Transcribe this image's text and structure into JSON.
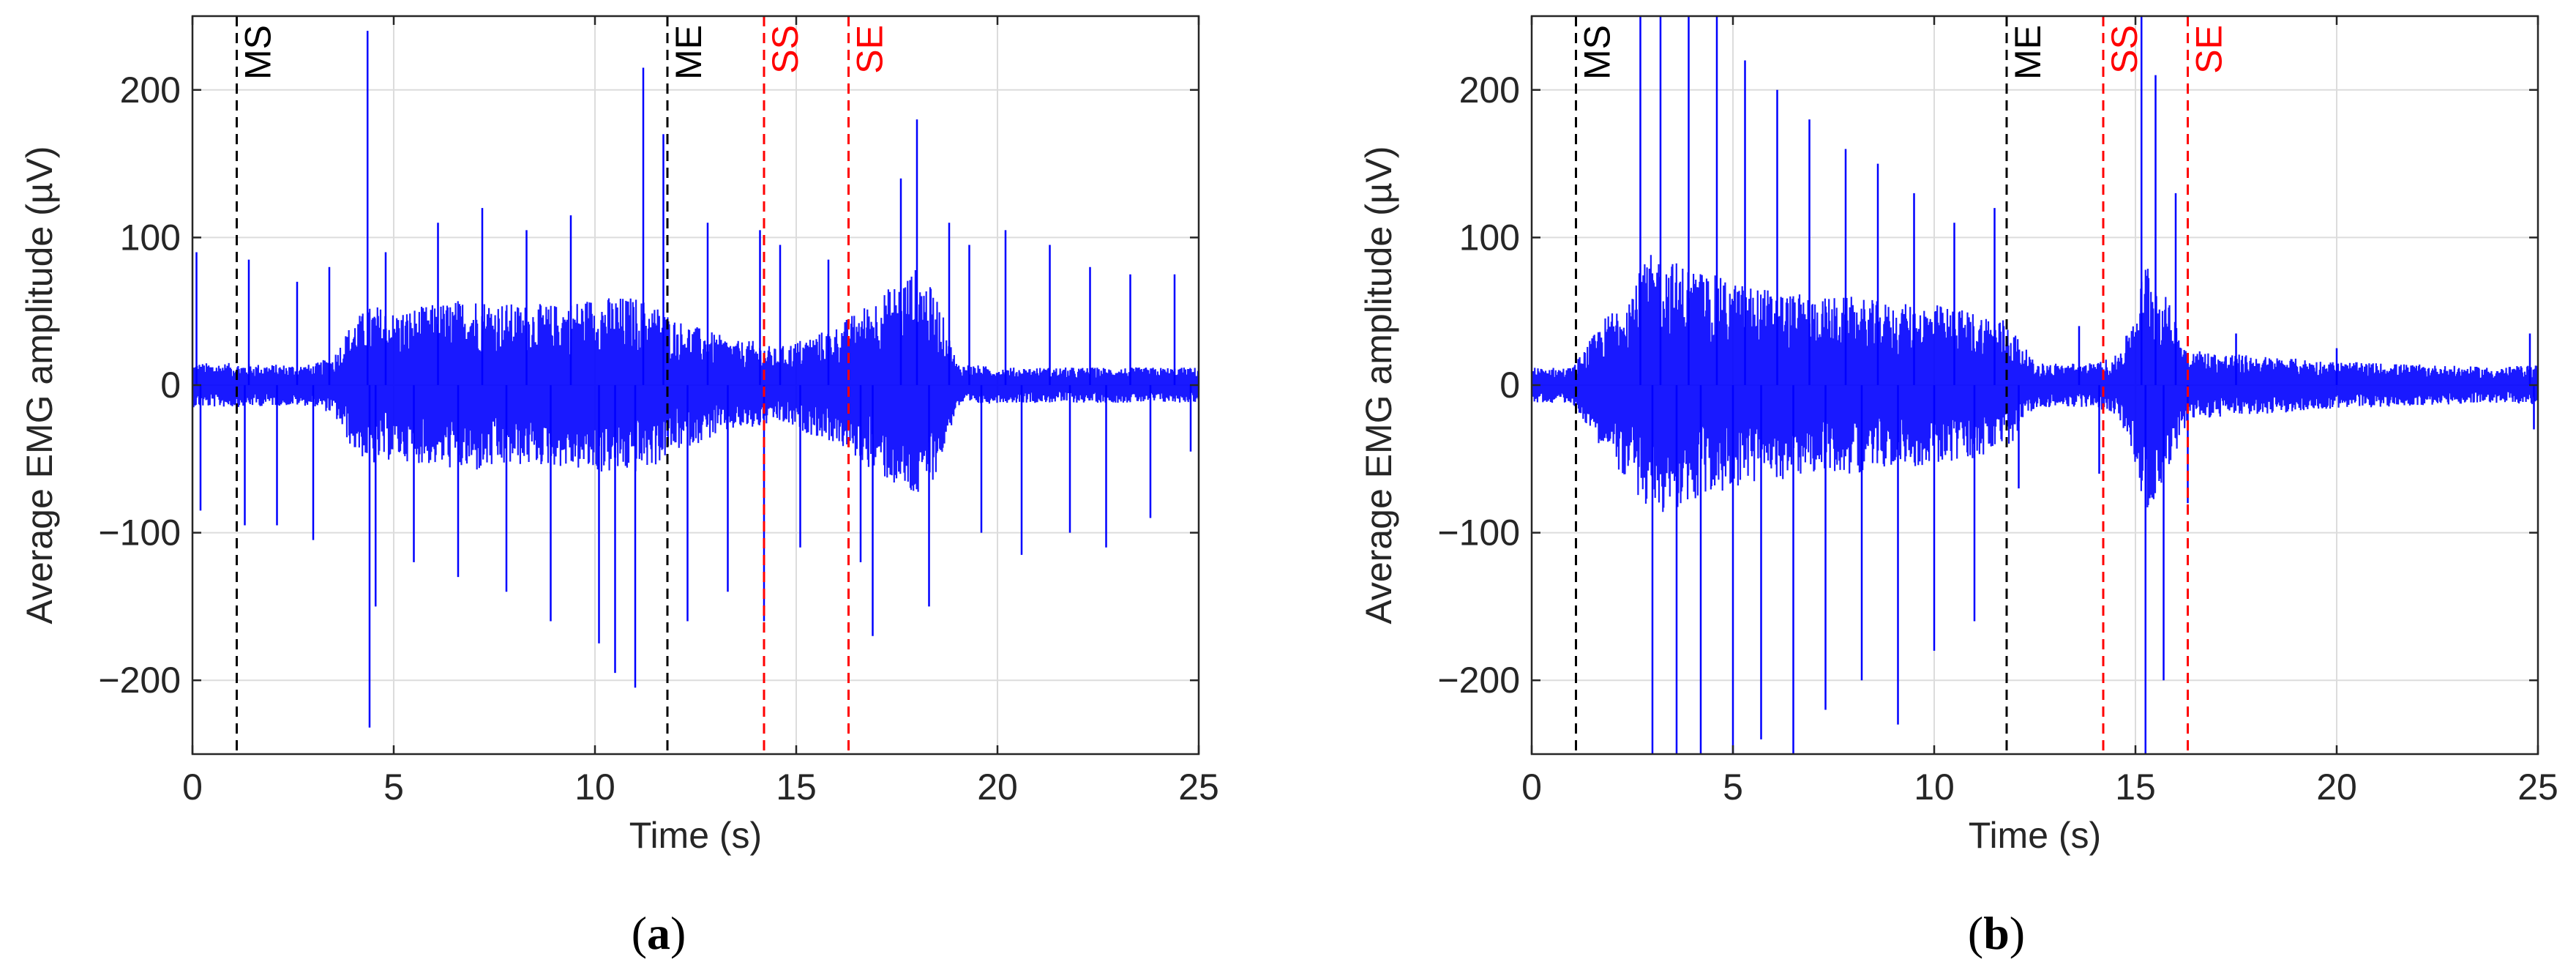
{
  "chart_data": [
    {
      "type": "line",
      "panel": "(a)",
      "panel_letter": "a",
      "xlabel": "Time (s)",
      "ylabel": "Average EMG amplitude (µV)",
      "xlim": [
        0,
        25
      ],
      "ylim": [
        -250,
        250
      ],
      "xticks": [
        0,
        5,
        10,
        15,
        20,
        25
      ],
      "yticks": [
        -200,
        -100,
        0,
        100,
        200
      ],
      "ytick_labels": [
        "−200",
        "−100",
        "0",
        "100",
        "200"
      ],
      "grid": true,
      "series": [
        {
          "color": "#0000ff",
          "envelope_x": [
            0,
            1,
            2,
            3,
            3.5,
            4,
            4.5,
            5,
            6,
            7,
            8,
            9,
            10,
            11,
            11.5,
            12,
            12.5,
            13,
            13.5,
            14,
            14.5,
            15,
            15.5,
            16,
            16.5,
            17,
            17.5,
            18,
            18.5,
            19,
            20,
            21,
            22,
            23,
            24,
            25
          ],
          "envelope": [
            15,
            15,
            14,
            14,
            20,
            45,
            55,
            50,
            55,
            60,
            55,
            55,
            60,
            60,
            55,
            45,
            40,
            35,
            30,
            30,
            25,
            30,
            35,
            40,
            50,
            60,
            70,
            80,
            60,
            15,
            12,
            12,
            12,
            12,
            12,
            12
          ],
          "spikes": [
            {
              "x": 0.1,
              "y": 90
            },
            {
              "x": 1.4,
              "y": 85
            },
            {
              "x": 0.2,
              "y": -85
            },
            {
              "x": 1.3,
              "y": -95
            },
            {
              "x": 2.1,
              "y": -95
            },
            {
              "x": 2.6,
              "y": 70
            },
            {
              "x": 3.0,
              "y": -105
            },
            {
              "x": 3.4,
              "y": 80
            },
            {
              "x": 4.35,
              "y": 240
            },
            {
              "x": 4.4,
              "y": -232
            },
            {
              "x": 4.55,
              "y": -150
            },
            {
              "x": 4.8,
              "y": 90
            },
            {
              "x": 5.5,
              "y": -120
            },
            {
              "x": 6.1,
              "y": 110
            },
            {
              "x": 6.6,
              "y": -130
            },
            {
              "x": 7.2,
              "y": 120
            },
            {
              "x": 7.8,
              "y": -140
            },
            {
              "x": 8.3,
              "y": 105
            },
            {
              "x": 8.9,
              "y": -160
            },
            {
              "x": 9.4,
              "y": 115
            },
            {
              "x": 10.1,
              "y": -175
            },
            {
              "x": 10.5,
              "y": -195
            },
            {
              "x": 11.2,
              "y": 215
            },
            {
              "x": 11.0,
              "y": -205
            },
            {
              "x": 11.7,
              "y": 170
            },
            {
              "x": 12.3,
              "y": -160
            },
            {
              "x": 12.8,
              "y": 110
            },
            {
              "x": 13.3,
              "y": -140
            },
            {
              "x": 14.1,
              "y": 105
            },
            {
              "x": 14.2,
              "y": -160
            },
            {
              "x": 14.6,
              "y": 95
            },
            {
              "x": 15.1,
              "y": -110
            },
            {
              "x": 15.8,
              "y": 85
            },
            {
              "x": 16.6,
              "y": -120
            },
            {
              "x": 16.9,
              "y": -170
            },
            {
              "x": 17.6,
              "y": 140
            },
            {
              "x": 18.0,
              "y": 180
            },
            {
              "x": 18.3,
              "y": -150
            },
            {
              "x": 18.8,
              "y": 110
            },
            {
              "x": 19.3,
              "y": 95
            },
            {
              "x": 19.6,
              "y": -100
            },
            {
              "x": 20.2,
              "y": 105
            },
            {
              "x": 20.6,
              "y": -115
            },
            {
              "x": 21.3,
              "y": 95
            },
            {
              "x": 21.8,
              "y": -100
            },
            {
              "x": 22.3,
              "y": 80
            },
            {
              "x": 22.7,
              "y": -110
            },
            {
              "x": 23.3,
              "y": 75
            },
            {
              "x": 23.8,
              "y": -90
            },
            {
              "x": 24.4,
              "y": 75
            },
            {
              "x": 24.8,
              "y": -45
            }
          ]
        }
      ],
      "markers": [
        {
          "label": "MS",
          "x": 1.1,
          "color": "#000000"
        },
        {
          "label": "ME",
          "x": 11.8,
          "color": "#000000"
        },
        {
          "label": "SS",
          "x": 14.2,
          "color": "#ff0000"
        },
        {
          "label": "SE",
          "x": 16.3,
          "color": "#ff0000"
        }
      ]
    },
    {
      "type": "line",
      "panel": "(b)",
      "panel_letter": "b",
      "xlabel": "Time (s)",
      "ylabel": "Average EMG amplitude (µV)",
      "xlim": [
        0,
        25
      ],
      "ylim": [
        -250,
        250
      ],
      "xticks": [
        0,
        5,
        10,
        15,
        20,
        25
      ],
      "yticks": [
        -200,
        -100,
        0,
        100,
        200
      ],
      "ytick_labels": [
        "−200",
        "−100",
        "0",
        "100",
        "200"
      ],
      "grid": true,
      "series": [
        {
          "color": "#0000ff",
          "envelope_x": [
            0,
            1,
            1.2,
            1.8,
            2.5,
            3,
            4,
            5,
            6,
            7,
            8,
            9,
            10,
            11,
            11.8,
            12.5,
            13,
            13.5,
            14,
            14.5,
            14.8,
            15,
            15.3,
            15.6,
            16,
            16.3,
            17,
            18,
            19,
            20,
            21,
            22,
            23,
            24,
            25
          ],
          "envelope": [
            12,
            12,
            20,
            45,
            70,
            90,
            80,
            70,
            65,
            60,
            60,
            55,
            55,
            50,
            45,
            15,
            15,
            15,
            15,
            20,
            35,
            55,
            90,
            70,
            45,
            25,
            22,
            20,
            18,
            16,
            15,
            14,
            13,
            12,
            14
          ],
          "spikes": [
            {
              "x": 2.7,
              "y": 250
            },
            {
              "x": 3.0,
              "y": -250
            },
            {
              "x": 3.2,
              "y": 250
            },
            {
              "x": 3.6,
              "y": -250
            },
            {
              "x": 3.9,
              "y": 250
            },
            {
              "x": 4.2,
              "y": -250
            },
            {
              "x": 4.6,
              "y": 250
            },
            {
              "x": 5.0,
              "y": -250
            },
            {
              "x": 5.3,
              "y": 220
            },
            {
              "x": 5.7,
              "y": -240
            },
            {
              "x": 6.1,
              "y": 200
            },
            {
              "x": 6.5,
              "y": -250
            },
            {
              "x": 6.9,
              "y": 180
            },
            {
              "x": 7.3,
              "y": -220
            },
            {
              "x": 7.8,
              "y": 160
            },
            {
              "x": 8.2,
              "y": -200
            },
            {
              "x": 8.6,
              "y": 150
            },
            {
              "x": 9.1,
              "y": -230
            },
            {
              "x": 9.5,
              "y": 130
            },
            {
              "x": 10.0,
              "y": -180
            },
            {
              "x": 10.5,
              "y": 110
            },
            {
              "x": 11.0,
              "y": -160
            },
            {
              "x": 11.5,
              "y": 120
            },
            {
              "x": 12.1,
              "y": -70
            },
            {
              "x": 13.6,
              "y": 40
            },
            {
              "x": 14.1,
              "y": -60
            },
            {
              "x": 15.15,
              "y": 250
            },
            {
              "x": 15.25,
              "y": -250
            },
            {
              "x": 15.5,
              "y": 210
            },
            {
              "x": 15.7,
              "y": -200
            },
            {
              "x": 16.0,
              "y": 130
            },
            {
              "x": 16.3,
              "y": -80
            },
            {
              "x": 17.5,
              "y": 35
            },
            {
              "x": 20.0,
              "y": 25
            },
            {
              "x": 24.8,
              "y": 35
            },
            {
              "x": 24.9,
              "y": -30
            }
          ]
        }
      ],
      "markers": [
        {
          "label": "MS",
          "x": 1.1,
          "color": "#000000"
        },
        {
          "label": "ME",
          "x": 11.8,
          "color": "#000000"
        },
        {
          "label": "SS",
          "x": 14.2,
          "color": "#ff0000"
        },
        {
          "label": "SE",
          "x": 16.3,
          "color": "#ff0000"
        }
      ]
    }
  ]
}
